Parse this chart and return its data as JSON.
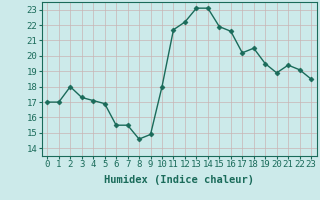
{
  "x": [
    0,
    1,
    2,
    3,
    4,
    5,
    6,
    7,
    8,
    9,
    10,
    11,
    12,
    13,
    14,
    15,
    16,
    17,
    18,
    19,
    20,
    21,
    22,
    23
  ],
  "y": [
    17.0,
    17.0,
    18.0,
    17.3,
    17.1,
    16.9,
    15.5,
    15.5,
    14.6,
    14.9,
    18.0,
    21.7,
    22.2,
    23.1,
    23.1,
    21.9,
    21.6,
    20.2,
    20.5,
    19.5,
    18.9,
    19.4,
    19.1,
    18.5
  ],
  "line_color": "#1a6b5a",
  "marker": "D",
  "marker_size": 2.5,
  "bg_color": "#cceaea",
  "grid_color_major": "#c8b4b4",
  "grid_color_minor": "#d8c8c8",
  "xlabel": "Humidex (Indice chaleur)",
  "xlim": [
    -0.5,
    23.5
  ],
  "ylim": [
    13.5,
    23.5
  ],
  "yticks": [
    14,
    15,
    16,
    17,
    18,
    19,
    20,
    21,
    22,
    23
  ],
  "xticks": [
    0,
    1,
    2,
    3,
    4,
    5,
    6,
    7,
    8,
    9,
    10,
    11,
    12,
    13,
    14,
    15,
    16,
    17,
    18,
    19,
    20,
    21,
    22,
    23
  ],
  "xlabel_fontsize": 7.5,
  "tick_fontsize": 6.5,
  "line_width": 1.0
}
